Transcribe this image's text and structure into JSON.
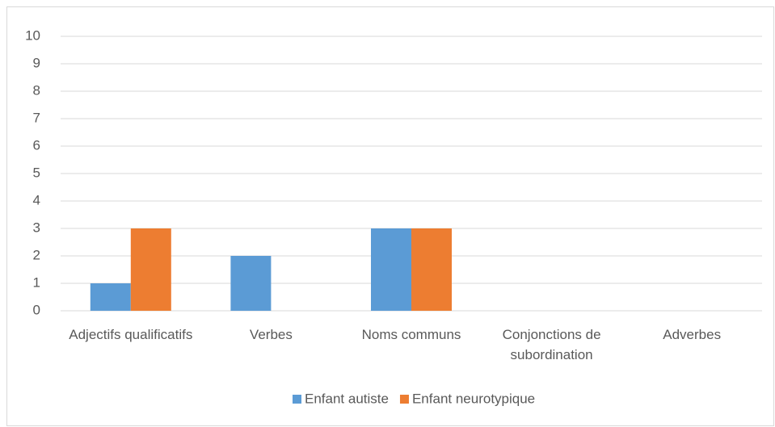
{
  "chart_data": {
    "type": "bar",
    "categories": [
      "Adjectifs qualificatifs",
      "Verbes",
      "Noms communs",
      "Conjonctions de subordination",
      "Adverbes"
    ],
    "series": [
      {
        "name": "Enfant autiste",
        "color": "#5b9bd5",
        "values": [
          1,
          2,
          3,
          0,
          0
        ]
      },
      {
        "name": "Enfant neurotypique",
        "color": "#ed7d31",
        "values": [
          3,
          0,
          3,
          0,
          0
        ]
      }
    ],
    "ylim": [
      0,
      10
    ],
    "yticks": [
      0,
      1,
      2,
      3,
      4,
      5,
      6,
      7,
      8,
      9,
      10
    ],
    "grid": true,
    "legend": "bottom"
  }
}
